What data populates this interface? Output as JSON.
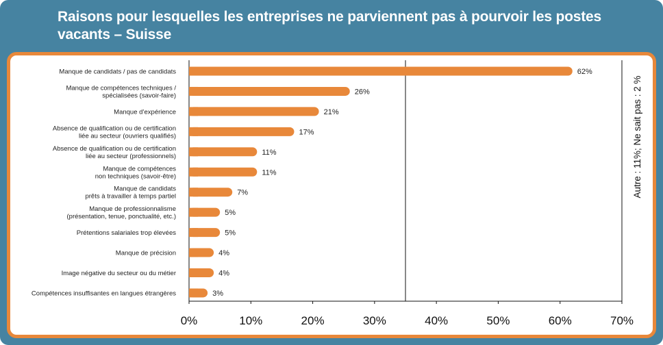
{
  "chart_data": {
    "type": "bar",
    "orientation": "horizontal",
    "title": "Raisons pour lesquelles les entreprises ne parviennent pas à pourvoir les postes vacants – Suisse",
    "categories": [
      [
        "Manque de candidats / pas de candidats"
      ],
      [
        "Manque de compétences techniques /",
        "spécialisées (savoir-faire)"
      ],
      [
        "Manque d’expérience"
      ],
      [
        "Absence de qualification ou de certification",
        "liée au secteur (ouvriers qualifiés)"
      ],
      [
        "Absence de qualification ou de certification",
        "liée au secteur (professionnels)"
      ],
      [
        "Manque de compétences",
        "non techniques (savoir-être)"
      ],
      [
        "Manque de candidats",
        "prêts à travailler à temps partiel"
      ],
      [
        "Manque de professionnalisme",
        "(présentation, tenue, ponctualité, etc.)"
      ],
      [
        "Prétentions salariales trop élevées"
      ],
      [
        "Manque de précision"
      ],
      [
        "Image négative du secteur ou du métier"
      ],
      [
        "Compétences insuffisantes en langues étrangères"
      ]
    ],
    "values": [
      62,
      26,
      21,
      17,
      11,
      11,
      7,
      5,
      5,
      4,
      4,
      3
    ],
    "value_labels": [
      "62%",
      "26%",
      "21%",
      "17%",
      "11%",
      "11%",
      "7%",
      "5%",
      "5%",
      "4%",
      "4%",
      "3%"
    ],
    "xlim": [
      0,
      70
    ],
    "xticks": [
      0,
      10,
      20,
      30,
      40,
      50,
      60,
      70
    ],
    "xtick_labels": [
      "0%",
      "10%",
      "20%",
      "30%",
      "40%",
      "50%",
      "60%",
      "70%"
    ],
    "reference_line": 35,
    "side_note": "Autre : 11%; Ne sait pas : 2 %",
    "colors": {
      "bar": "#e8883a",
      "frame": "#4683a1",
      "panel_border": "#e8883a"
    }
  }
}
